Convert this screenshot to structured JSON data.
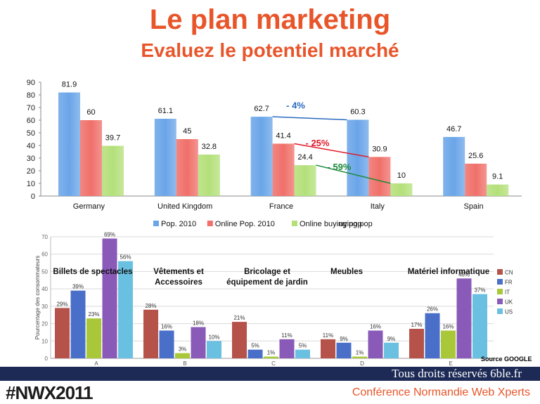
{
  "header": {
    "title": "Le plan marketing",
    "subtitle": "Evaluez le potentiel marché"
  },
  "chart_data": [
    {
      "type": "bar",
      "categories": [
        "Germany",
        "United Kingdom",
        "France",
        "Italy",
        "Spain"
      ],
      "series": [
        {
          "name": "Pop. 2010",
          "values": [
            81.9,
            61.1,
            62.7,
            60.3,
            46.7
          ],
          "color": "#6aa5e8"
        },
        {
          "name": "Online Pop. 2010",
          "values": [
            60,
            45,
            41.4,
            30.9,
            25.6
          ],
          "color": "#f0706a"
        },
        {
          "name": "Online buying pop",
          "values": [
            39.7,
            32.8,
            24.4,
            10,
            9.1
          ],
          "color": "#b4e07a"
        }
      ],
      "ylim": [
        0,
        90
      ],
      "yticks": [
        0,
        10,
        20,
        30,
        40,
        50,
        60,
        70,
        80,
        90
      ],
      "legend_extra": "uying pop",
      "annotations": [
        {
          "text": "- 4%",
          "series": 0,
          "from": 2,
          "to": 3,
          "color": "#2a6bbf"
        },
        {
          "text": "- 25%",
          "series": 1,
          "from": 2,
          "to": 3,
          "color": "#e01b2a"
        },
        {
          "text": "- 59%",
          "series": 2,
          "from": 2,
          "to": 3,
          "color": "#1a8a3a"
        }
      ],
      "legend_position": "bottom",
      "grid": false
    },
    {
      "type": "bar",
      "ylabel": "Pourcentage des consommateurs",
      "categories": [
        "A",
        "B",
        "C",
        "D",
        "E"
      ],
      "group_labels": [
        [
          "Billets de spectacles"
        ],
        [
          "Vêtements et",
          "Accessoires"
        ],
        [
          "Bricolage et",
          "équipement de jardin"
        ],
        [
          "Meubles"
        ],
        [
          "Matériel informatique"
        ]
      ],
      "series": [
        {
          "name": "CN",
          "values": [
            29,
            28,
            21,
            11,
            17
          ],
          "color": "#b5534a"
        },
        {
          "name": "FR",
          "values": [
            39,
            16,
            5,
            9,
            26
          ],
          "color": "#4a6fc8"
        },
        {
          "name": "IT",
          "values": [
            23,
            3,
            1,
            1,
            16
          ],
          "color": "#a8c83a"
        },
        {
          "name": "UK",
          "values": [
            69,
            18,
            11,
            16,
            46
          ],
          "color": "#8a5ab8"
        },
        {
          "name": "US",
          "values": [
            56,
            10,
            5,
            9,
            37
          ],
          "color": "#6ac0e0"
        }
      ],
      "value_suffix": "%",
      "ylim": [
        0,
        70
      ],
      "yticks": [
        0,
        10,
        20,
        30,
        40,
        50,
        60,
        70
      ],
      "legend_position": "right",
      "grid": true,
      "source": "Source GOOGLE"
    }
  ],
  "footer": {
    "rights": "Tous droits réservés 6ble.fr",
    "logo": "#NWX2011",
    "conference": "Conférence Normandie Web Xperts"
  }
}
